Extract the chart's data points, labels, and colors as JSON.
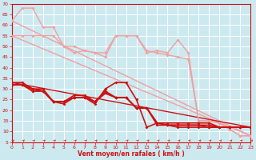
{
  "xlabel": "Vent moyen/en rafales ( km/h )",
  "xlim": [
    0,
    23
  ],
  "ylim": [
    5,
    70
  ],
  "yticks": [
    5,
    10,
    15,
    20,
    25,
    30,
    35,
    40,
    45,
    50,
    55,
    60,
    65,
    70
  ],
  "xticks": [
    0,
    1,
    2,
    3,
    4,
    5,
    6,
    7,
    8,
    9,
    10,
    11,
    12,
    13,
    14,
    15,
    16,
    17,
    18,
    19,
    20,
    21,
    22,
    23
  ],
  "bg_color": "#cce9f0",
  "grid_color": "#ffffff",
  "lines": [
    {
      "x": [
        0,
        1,
        2,
        3,
        4,
        5,
        6,
        7,
        8,
        9,
        10,
        11,
        12,
        13,
        14,
        15,
        16,
        17,
        18,
        19,
        20,
        21,
        22,
        23
      ],
      "y": [
        62,
        68,
        68,
        59,
        59,
        50,
        50,
        48,
        47,
        47,
        55,
        55,
        55,
        47,
        48,
        47,
        53,
        47,
        15,
        15,
        14,
        11,
        8,
        8
      ],
      "color": "#f0a0a0",
      "lw": 1.0,
      "marker": "D",
      "ms": 2.0
    },
    {
      "x": [
        0,
        1,
        2,
        3,
        4,
        5,
        6,
        7,
        8,
        9,
        10,
        11,
        12,
        13,
        14,
        15,
        16,
        17,
        18,
        19,
        20,
        21,
        22,
        23
      ],
      "y": [
        55,
        55,
        55,
        55,
        55,
        50,
        47,
        48,
        47,
        45,
        55,
        55,
        55,
        48,
        47,
        46,
        45,
        44,
        15,
        15,
        14,
        11,
        8,
        8
      ],
      "color": "#f0a0a0",
      "lw": 1.0,
      "marker": "D",
      "ms": 2.0
    },
    {
      "x": [
        0,
        23
      ],
      "y": [
        62,
        8
      ],
      "color": "#f0a0a0",
      "lw": 1.0,
      "marker": null,
      "ms": 0
    },
    {
      "x": [
        0,
        23
      ],
      "y": [
        55,
        8
      ],
      "color": "#f0a0a0",
      "lw": 1.0,
      "marker": null,
      "ms": 0
    },
    {
      "x": [
        0,
        1,
        2,
        3,
        4,
        5,
        6,
        7,
        8,
        9,
        10,
        11,
        12,
        13,
        14,
        15,
        16,
        17,
        18,
        19,
        20,
        21,
        22,
        23
      ],
      "y": [
        33,
        33,
        30,
        30,
        24,
        23,
        26,
        26,
        23,
        30,
        33,
        33,
        25,
        12,
        14,
        14,
        14,
        14,
        14,
        14,
        12,
        12,
        12,
        12
      ],
      "color": "#cc1111",
      "lw": 1.2,
      "marker": "D",
      "ms": 2.0
    },
    {
      "x": [
        0,
        1,
        2,
        3,
        4,
        5,
        6,
        7,
        8,
        9,
        10,
        11,
        12,
        13,
        14,
        15,
        16,
        17,
        18,
        19,
        20,
        21,
        22,
        23
      ],
      "y": [
        32,
        32,
        30,
        29,
        24,
        24,
        27,
        27,
        24,
        29,
        26,
        26,
        21,
        21,
        14,
        13,
        13,
        13,
        13,
        13,
        12,
        12,
        12,
        12
      ],
      "color": "#cc1111",
      "lw": 1.2,
      "marker": "D",
      "ms": 2.0
    },
    {
      "x": [
        0,
        1,
        2,
        3,
        4,
        5,
        6,
        7,
        8,
        9,
        10,
        11,
        12,
        13,
        14,
        15,
        16,
        17,
        18,
        19,
        20,
        21,
        22,
        23
      ],
      "y": [
        32,
        32,
        29,
        29,
        24,
        24,
        26,
        26,
        24,
        28,
        26,
        26,
        21,
        21,
        14,
        13,
        13,
        13,
        13,
        12,
        12,
        12,
        12,
        12
      ],
      "color": "#cc1111",
      "lw": 1.2,
      "marker": "D",
      "ms": 2.0
    },
    {
      "x": [
        0,
        1,
        2,
        3,
        4,
        5,
        6,
        7,
        8,
        9,
        10,
        11,
        12,
        13,
        14,
        15,
        16,
        17,
        18,
        19,
        20,
        21,
        22,
        23
      ],
      "y": [
        32,
        32,
        29,
        29,
        24,
        24,
        26,
        26,
        24,
        28,
        26,
        26,
        21,
        21,
        13,
        13,
        12,
        12,
        12,
        12,
        12,
        12,
        12,
        12
      ],
      "color": "#cc1111",
      "lw": 1.2,
      "marker": "D",
      "ms": 2.0
    },
    {
      "x": [
        0,
        23
      ],
      "y": [
        33,
        12
      ],
      "color": "#cc1111",
      "lw": 1.0,
      "marker": null,
      "ms": 0
    }
  ],
  "arrow_color": "#ee3333",
  "tick_color": "#cc1111",
  "label_color": "#cc1111",
  "tick_fontsize": 4.5,
  "label_fontsize": 5.5
}
